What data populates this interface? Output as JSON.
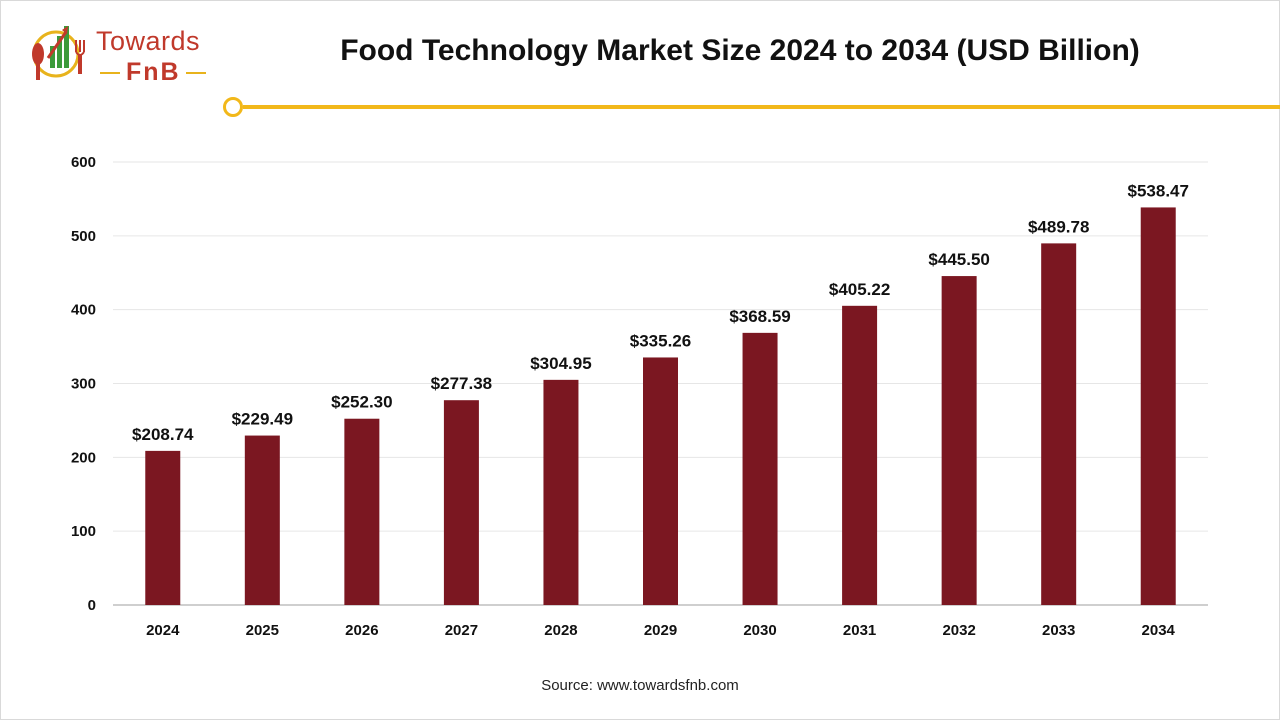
{
  "brand": {
    "name_top": "Towards",
    "name_bottom": "FnB"
  },
  "colors": {
    "bar": "#7b1721",
    "accent": "#f2b81a",
    "brand_red": "#c0392b",
    "brand_green": "#3c9a3a",
    "grid": "#e6e6e6"
  },
  "source": "Source: www.towardsfnb.com",
  "chart_data": {
    "type": "bar",
    "title": "Food Technology Market Size 2024 to 2034 (USD Billion)",
    "xlabel": "",
    "ylabel": "",
    "categories": [
      "2024",
      "2025",
      "2026",
      "2027",
      "2028",
      "2029",
      "2030",
      "2031",
      "2032",
      "2033",
      "2034"
    ],
    "values": [
      208.74,
      229.49,
      252.3,
      277.38,
      304.95,
      335.26,
      368.59,
      405.22,
      445.5,
      489.78,
      538.47
    ],
    "data_labels": [
      "$208.74",
      "$229.49",
      "$252.30",
      "$277.38",
      "$304.95",
      "$335.26",
      "$368.59",
      "$405.22",
      "$445.50",
      "$489.78",
      "$538.47"
    ],
    "yticks": [
      0,
      100,
      200,
      300,
      400,
      500,
      600
    ],
    "ylim": [
      0,
      600
    ],
    "grid": true,
    "legend": "none"
  }
}
